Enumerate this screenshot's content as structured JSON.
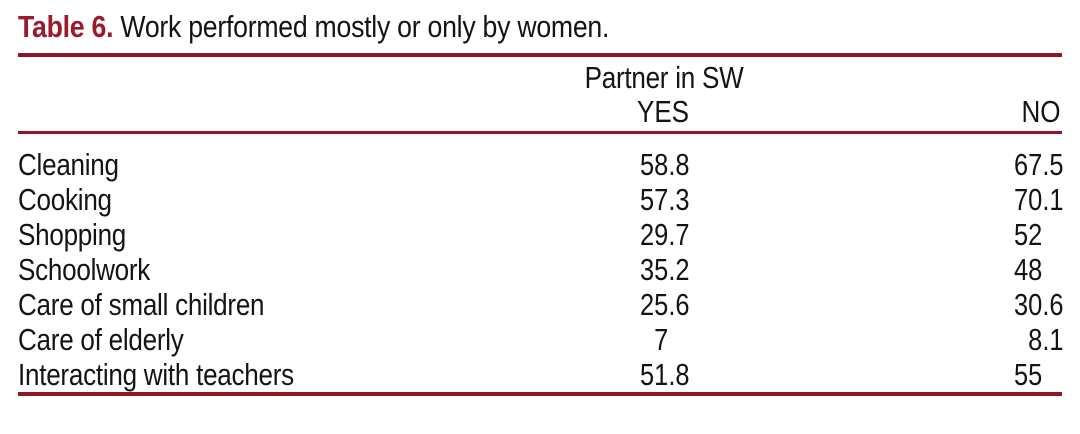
{
  "caption": {
    "label": "Table 6.",
    "text": "Work performed mostly or only by women."
  },
  "header": {
    "group": "Partner in SW",
    "col_yes": "YES",
    "col_no": "NO"
  },
  "rows": [
    {
      "label": "Cleaning",
      "yes": "58.8",
      "no": "67.5"
    },
    {
      "label": "Cooking",
      "yes": "57.3",
      "no": "70.1"
    },
    {
      "label": "Shopping",
      "yes": "29.7",
      "no": "52"
    },
    {
      "label": "Schoolwork",
      "yes": "35.2",
      "no": "48"
    },
    {
      "label": "Care of small children",
      "yes": "25.6",
      "no": "30.6"
    },
    {
      "label": "Care of elderly",
      "yes": "7",
      "no": "8.1"
    },
    {
      "label": "Interacting with teachers",
      "yes": "51.8",
      "no": "55"
    }
  ],
  "colors": {
    "accent": "#9a1b2c",
    "rule": "#8e1626",
    "text": "#141414"
  },
  "chart_data": {
    "type": "table",
    "title": "Table 6. Work performed mostly or only by women.",
    "column_group": "Partner in SW",
    "columns": [
      "YES",
      "NO"
    ],
    "row_labels": [
      "Cleaning",
      "Cooking",
      "Shopping",
      "Schoolwork",
      "Care of small children",
      "Care of elderly",
      "Interacting with teachers"
    ],
    "series": [
      {
        "name": "YES",
        "values": [
          58.8,
          57.3,
          29.7,
          35.2,
          25.6,
          7,
          51.8
        ]
      },
      {
        "name": "NO",
        "values": [
          67.5,
          70.1,
          52,
          48,
          30.6,
          8.1,
          55
        ]
      }
    ]
  }
}
